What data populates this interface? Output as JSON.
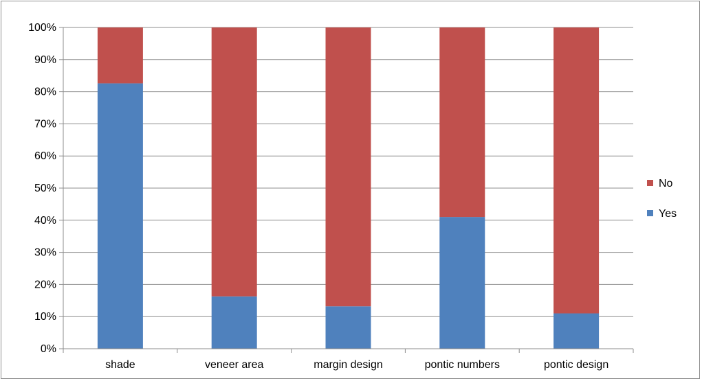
{
  "chart_data": {
    "type": "bar",
    "stacked": true,
    "percent": true,
    "categories": [
      "shade",
      "veneer area",
      "margin design",
      "pontic numbers",
      "pontic design"
    ],
    "series": [
      {
        "name": "Yes",
        "color": "#4f81bd",
        "values": [
          82.6,
          16.3,
          13.2,
          41.0,
          11.0
        ]
      },
      {
        "name": "No",
        "color": "#c0504d",
        "values": [
          17.4,
          83.7,
          86.8,
          59.0,
          89.0
        ]
      }
    ],
    "ylim": [
      0,
      100
    ],
    "yticks": [
      "0%",
      "10%",
      "20%",
      "30%",
      "40%",
      "50%",
      "60%",
      "70%",
      "80%",
      "90%",
      "100%"
    ],
    "grid": true,
    "legend_position": "right"
  }
}
